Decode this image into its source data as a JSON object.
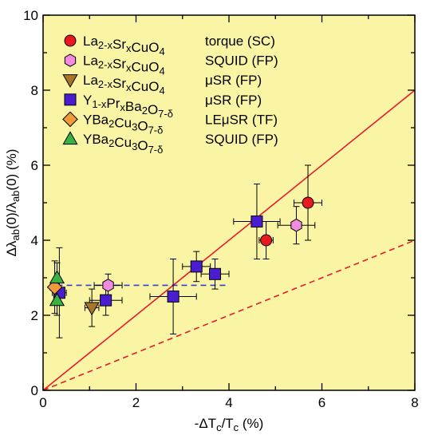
{
  "chart_data": {
    "type": "scatter",
    "x": {
      "min": 0,
      "max": 8,
      "ticks": [
        0,
        2,
        4,
        6,
        8
      ]
    },
    "y": {
      "min": 0,
      "max": 10,
      "ticks": [
        0,
        2,
        4,
        6,
        8,
        10
      ]
    },
    "xlabel": {
      "prefix": "-ΔT",
      "sub": "c",
      "mid": "/T",
      "sub2": "c",
      "suffix": " (%)"
    },
    "ylabel": {
      "p1": "Δλ",
      "s1": "ab",
      "p2": "(0)/λ",
      "s2": "ab",
      "p3": "(0) (%)"
    },
    "background": "#f9f5a5",
    "grid": false,
    "legend_position": "top-left",
    "series": [
      {
        "marker": "circle",
        "color": "#e8191e",
        "legend": {
          "formula": [
            [
              "La",
              ""
            ],
            [
              "2-x",
              "sub"
            ],
            [
              "Sr",
              ""
            ],
            [
              "x",
              "sub"
            ],
            [
              "CuO",
              ""
            ],
            [
              "4",
              "sub"
            ]
          ],
          "method": "torque (SC)"
        },
        "points": [
          {
            "x": 4.8,
            "y": 4.0,
            "xerr": 0.15,
            "yerr": 0.5
          },
          {
            "x": 5.7,
            "y": 5.0,
            "xerr": 0.3,
            "yerr": 1.0
          }
        ]
      },
      {
        "marker": "hexagon",
        "color": "#f08be0",
        "legend": {
          "formula": [
            [
              "La",
              ""
            ],
            [
              "2-x",
              "sub"
            ],
            [
              "Sr",
              ""
            ],
            [
              "x",
              "sub"
            ],
            [
              "CuO",
              ""
            ],
            [
              "4",
              "sub"
            ]
          ],
          "method": "SQUID (FP)"
        },
        "points": [
          {
            "x": 1.4,
            "y": 2.8,
            "xerr": 0.3,
            "yerr": 0.3
          },
          {
            "x": 5.45,
            "y": 4.4,
            "xerr": 0.4,
            "yerr": 0.5
          }
        ]
      },
      {
        "marker": "triangle-down",
        "color": "#a8762a",
        "legend": {
          "formula": [
            [
              "La",
              ""
            ],
            [
              "2-x",
              "sub"
            ],
            [
              "Sr",
              ""
            ],
            [
              "x",
              "sub"
            ],
            [
              "CuO",
              ""
            ],
            [
              "4",
              "sub"
            ]
          ],
          "method": "μSR (FP)"
        },
        "points": [
          {
            "x": 1.05,
            "y": 2.2,
            "xerr": 0.15,
            "yerr": 0.5
          }
        ]
      },
      {
        "marker": "square",
        "color": "#4a1ed0",
        "legend": {
          "formula": [
            [
              "Y",
              ""
            ],
            [
              "1-x",
              "sub"
            ],
            [
              "Pr",
              ""
            ],
            [
              "x",
              "sub"
            ],
            [
              "Ba",
              ""
            ],
            [
              "2",
              "sub"
            ],
            [
              "O",
              ""
            ],
            [
              "7-δ",
              "sub"
            ]
          ],
          "method": "μSR (FP)"
        },
        "points": [
          {
            "x": 0.35,
            "y": 2.6,
            "xerr": 0.15,
            "yerr": 1.2
          },
          {
            "x": 1.35,
            "y": 2.4,
            "xerr": 0.35,
            "yerr": 0.4
          },
          {
            "x": 2.8,
            "y": 2.5,
            "xerr": 0.5,
            "yerr": 1.0
          },
          {
            "x": 3.3,
            "y": 3.3,
            "xerr": 0.3,
            "yerr": 0.4
          },
          {
            "x": 3.7,
            "y": 3.1,
            "xerr": 0.3,
            "yerr": 0.4
          },
          {
            "x": 4.6,
            "y": 4.5,
            "xerr": 0.5,
            "yerr": 1.0
          }
        ]
      },
      {
        "marker": "diamond",
        "color": "#f09a3b",
        "legend": {
          "formula": [
            [
              "YBa",
              ""
            ],
            [
              "2",
              "sub"
            ],
            [
              "Cu",
              ""
            ],
            [
              "3",
              "sub"
            ],
            [
              "O",
              ""
            ],
            [
              "7-δ",
              "sub"
            ]
          ],
          "method": "LEμSR (TF)"
        },
        "points": [
          {
            "x": 0.25,
            "y": 2.75,
            "xerr": 0.1,
            "yerr": 0.7
          }
        ]
      },
      {
        "marker": "triangle-up",
        "color": "#3cb043",
        "legend": {
          "formula": [
            [
              "YBa",
              ""
            ],
            [
              "2",
              "sub"
            ],
            [
              "Cu",
              ""
            ],
            [
              "3",
              "sub"
            ],
            [
              "O",
              ""
            ],
            [
              "7-δ",
              "sub"
            ]
          ],
          "method": "SQUID (FP)"
        },
        "points": [
          {
            "x": 0.3,
            "y": 3.0,
            "xerr": 0.05,
            "yerr": 0.4
          },
          {
            "x": 0.3,
            "y": 2.4,
            "xerr": 0.05,
            "yerr": 0.4
          }
        ]
      }
    ],
    "lines": [
      {
        "style": "solid",
        "color": "#e8192e",
        "x1": 0,
        "y1": 0,
        "x2": 8,
        "y2": 8
      },
      {
        "style": "dashed",
        "color": "#e8192e",
        "x1": 0,
        "y1": 0,
        "x2": 8,
        "y2": 4
      },
      {
        "style": "dashed",
        "color": "#3b3bd0",
        "x1": 0.3,
        "y1": 2.8,
        "x2": 4.0,
        "y2": 2.8
      }
    ]
  }
}
